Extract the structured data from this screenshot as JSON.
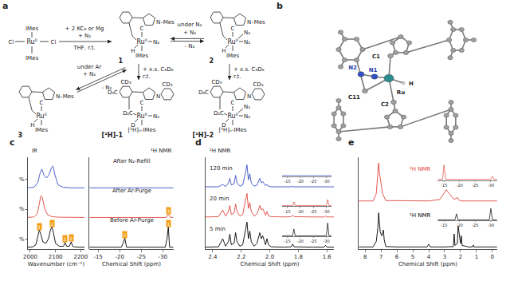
{
  "scheme": {
    "label": "a",
    "reactant": {
      "metal": "Ru",
      "ox": "II",
      "top": "IMes",
      "bottom": "IMes",
      "left": "Cl",
      "right": "Cl"
    },
    "step1": {
      "above": [
        "+ 2 KC₈ or Mg",
        "+ N₂"
      ],
      "below": "THF, r.t."
    },
    "complexes": [
      {
        "name": "1",
        "carbene": "C",
        "ring": "N–Mes",
        "metal": "Ru",
        "ox": "II",
        "ligands": [
          "N₂"
        ],
        "hydride": "H",
        "bottom": "IMes"
      },
      {
        "name": "2",
        "carbene": "C",
        "ring": "N–Mes",
        "metal": "Ru",
        "ox": "II",
        "ligands": [
          "N₂",
          "N₂"
        ],
        "hydride": "H",
        "bottom": "IMes"
      },
      {
        "name": "3",
        "carbene": "C",
        "ring": "N–Mes",
        "metal": "Ru",
        "ox": "II",
        "ligands": [],
        "hydride": "H",
        "bottom": "IMes"
      },
      {
        "name": "[²H]-1",
        "carbene": "C",
        "ring": "N",
        "metal": "Ru",
        "ox": "II",
        "ligands": [
          "N₂"
        ],
        "hydride": "D",
        "bottom": "[²H]ₙ-IMes",
        "linker": "D₂C",
        "substituents": [
          "CD₃",
          "D₃C",
          "CD₃"
        ]
      },
      {
        "name": "[²H]-2",
        "carbene": "C",
        "ring": "N",
        "metal": "Ru",
        "ox": "II",
        "ligands": [
          "N₂",
          "N₂"
        ],
        "hydride": "D",
        "bottom": "[²H]ₙ-IMes",
        "linker": "D₂C",
        "substituents": [
          "CD₃",
          "D₃C",
          "CD₃"
        ]
      }
    ],
    "eq_1_2": {
      "above": [
        "under N₂",
        "+ N₂"
      ],
      "below": "- N₂"
    },
    "eq_1_3": {
      "above": [
        "under Ar",
        "+ N₂"
      ],
      "below": "- N₂"
    },
    "deuteration": {
      "above": "+ x.s. C₆D₆",
      "below": "r.t."
    }
  },
  "structure": {
    "label": "b",
    "atoms": [
      "C1",
      "N1",
      "N2",
      "C11",
      "Ru",
      "H",
      "C2"
    ]
  },
  "chart_data": [
    {
      "type": "line",
      "panel_label": "c",
      "title": "IR",
      "x_label": "Wavenumber (cm⁻¹)",
      "xlim": [
        1990,
        2215
      ],
      "xticks": [
        2000,
        2100,
        2200
      ],
      "ylim": [
        -0.05,
        3.05
      ],
      "yticks": [
        {
          "value": 0.3,
          "label": "%"
        },
        {
          "value": 1.3,
          "label": "%"
        },
        {
          "value": 2.3,
          "label": "%"
        }
      ],
      "series": [
        {
          "name": "Before Ar-Purge",
          "color": "#000000",
          "x": [
            1990,
            2010,
            2022,
            2030,
            2036,
            2042,
            2050,
            2062,
            2072,
            2080,
            2086,
            2092,
            2100,
            2115,
            2132,
            2138,
            2144,
            2155,
            2162,
            2168,
            2176,
            2195,
            2215
          ],
          "values": [
            0.02,
            0.03,
            0.1,
            0.35,
            0.6,
            0.45,
            0.2,
            0.15,
            0.3,
            0.6,
            0.7,
            0.5,
            0.15,
            0.05,
            0.05,
            0.18,
            0.05,
            0.05,
            0.2,
            0.05,
            0.03,
            0.02,
            0.02
          ]
        },
        {
          "name": "After Ar-Purge",
          "color": "#e0443c",
          "x": [
            1990,
            2015,
            2028,
            2036,
            2042,
            2048,
            2056,
            2068,
            2085,
            2110,
            2160,
            2215
          ],
          "values": [
            1.02,
            1.04,
            1.15,
            1.5,
            1.75,
            1.7,
            1.35,
            1.12,
            1.05,
            1.03,
            1.02,
            1.02
          ]
        },
        {
          "name": "After N₂-Refill",
          "color": "#3a4fc4",
          "x": [
            1990,
            2015,
            2030,
            2040,
            2046,
            2054,
            2064,
            2074,
            2084,
            2090,
            2098,
            2110,
            2130,
            2160,
            2215
          ],
          "values": [
            2.02,
            2.04,
            2.2,
            2.55,
            2.65,
            2.45,
            2.35,
            2.45,
            2.7,
            2.75,
            2.45,
            2.12,
            2.04,
            2.02,
            2.02
          ]
        }
      ],
      "markers": [
        {
          "x": 2036,
          "y": 0.72,
          "label": "1"
        },
        {
          "x": 2086,
          "y": 0.82,
          "label": "2"
        },
        {
          "x": 2138,
          "y": 0.3,
          "label": "2"
        },
        {
          "x": 2162,
          "y": 0.32,
          "label": "2"
        }
      ]
    },
    {
      "type": "line",
      "title": "¹H NMR",
      "x_label": "Chemical Shift (ppm)",
      "xlim": [
        -13,
        -32.5
      ],
      "xticks": [
        -15,
        -20,
        -25,
        -30
      ],
      "ylim": [
        -0.05,
        3.05
      ],
      "tick_labels": "x",
      "series": [
        {
          "color": "#000000",
          "x": [
            -13,
            -20.4,
            -20.8,
            -21.2,
            -21.6,
            -30.6,
            -31.0,
            -31.3,
            -31.6,
            -32.5
          ],
          "values": [
            0.02,
            0.02,
            0.15,
            0.32,
            0.02,
            0.02,
            0.3,
            0.7,
            0.02,
            0.02
          ]
        },
        {
          "color": "#e0443c",
          "x": [
            -13,
            -30.8,
            -31.3,
            -31.8,
            -32.5
          ],
          "values": [
            1.02,
            1.02,
            1.12,
            1.02,
            1.02
          ]
        },
        {
          "color": "#3a4fc4",
          "x": [
            -13,
            -32.5
          ],
          "values": [
            2.02,
            2.02
          ]
        }
      ],
      "markers": [
        {
          "x": -21.2,
          "y": 0.44,
          "label": "2"
        },
        {
          "x": -31.3,
          "y": 0.82,
          "label": "1"
        },
        {
          "x": -31.3,
          "y": 1.24,
          "label": "3"
        }
      ]
    },
    {
      "type": "line",
      "panel_label": "d",
      "title": "¹H NMR",
      "x_label": "Chemical Shift (ppm)",
      "xlim": [
        2.45,
        1.55
      ],
      "xticks": [
        2.4,
        2.2,
        {
          "value": 2,
          "label": "2.0"
        },
        1.8,
        1.6
      ],
      "ylim": [
        -0.05,
        3.0
      ],
      "tick_labels": "x",
      "series": [
        {
          "name": "5 min",
          "color": "#000000",
          "x": [
            2.45,
            2.36,
            2.33,
            2.31,
            2.29,
            2.28,
            2.27,
            2.25,
            2.24,
            2.23,
            2.21,
            2.19,
            2.17,
            2.16,
            2.15,
            2.14,
            2.13,
            2.11,
            2.09,
            2.07,
            2.06,
            2.05,
            2.03,
            2.02,
            2.01,
            1.99,
            1.9,
            1.85,
            1.84,
            1.83,
            1.7,
            1.62,
            1.61,
            1.6,
            1.55
          ],
          "values": [
            0.02,
            0.03,
            0.3,
            0.05,
            0.2,
            0.45,
            0.1,
            0.15,
            0.5,
            0.2,
            0.05,
            0.1,
            0.6,
            0.85,
            0.3,
            0.55,
            0.2,
            0.05,
            0.15,
            0.5,
            0.3,
            0.4,
            0.1,
            0.3,
            0.1,
            0.03,
            0.02,
            0.03,
            0.12,
            0.03,
            0.02,
            0.02,
            0.08,
            0.02,
            0.02
          ],
          "inset": {
            "xlim": [
              -13,
              -32
            ],
            "xticks": [
              -15,
              -20,
              -25,
              -30
            ],
            "ylim": [
              0,
              1
            ],
            "x": [
              -13,
              -17,
              -17.5,
              -18,
              -30,
              -30.5,
              -31,
              -32
            ],
            "values": [
              0.05,
              0.05,
              0.5,
              0.05,
              0.05,
              0.9,
              0.05,
              0.05
            ]
          }
        },
        {
          "name": "20 min",
          "color": "#e0443c",
          "x": [
            2.45,
            2.36,
            2.33,
            2.31,
            2.29,
            2.28,
            2.27,
            2.25,
            2.24,
            2.23,
            2.21,
            2.19,
            2.17,
            2.16,
            2.15,
            2.14,
            2.13,
            2.11,
            2.09,
            2.07,
            2.06,
            2.05,
            2.03,
            2.02,
            2.01,
            1.99,
            1.9,
            1.85,
            1.84,
            1.83,
            1.7,
            1.62,
            1.61,
            1.6,
            1.55
          ],
          "values": [
            1.02,
            1.03,
            1.25,
            1.05,
            1.2,
            1.4,
            1.1,
            1.15,
            1.45,
            1.2,
            1.05,
            1.1,
            1.6,
            1.8,
            1.3,
            1.5,
            1.2,
            1.05,
            1.12,
            1.4,
            1.25,
            1.3,
            1.08,
            1.2,
            1.06,
            1.03,
            1.02,
            1.03,
            1.08,
            1.03,
            1.02,
            1.02,
            1.05,
            1.02,
            1.02
          ],
          "inset": {
            "xlim": [
              -13,
              -32
            ],
            "xticks": [
              -15,
              -20,
              -25,
              -30
            ],
            "ylim": [
              0,
              1
            ],
            "x": [
              -13,
              -17,
              -17.5,
              -18,
              -30,
              -30.5,
              -31,
              -32
            ],
            "values": [
              0.05,
              0.05,
              0.3,
              0.05,
              0.05,
              0.45,
              0.05,
              0.05
            ]
          }
        },
        {
          "name": "120 min",
          "color": "#3a4fc4",
          "x": [
            2.45,
            2.36,
            2.33,
            2.31,
            2.29,
            2.28,
            2.27,
            2.25,
            2.24,
            2.23,
            2.21,
            2.19,
            2.17,
            2.16,
            2.15,
            2.14,
            2.13,
            2.11,
            2.09,
            2.07,
            2.06,
            2.05,
            2.03,
            2.02,
            2.01,
            1.99,
            1.9,
            1.85,
            1.84,
            1.83,
            1.7,
            1.62,
            1.61,
            1.6,
            1.55
          ],
          "values": [
            2.02,
            2.02,
            2.1,
            2.03,
            2.15,
            2.3,
            2.08,
            2.12,
            2.4,
            2.15,
            2.04,
            2.08,
            2.5,
            2.75,
            2.25,
            2.45,
            2.15,
            2.04,
            2.08,
            2.3,
            2.15,
            2.2,
            2.05,
            2.1,
            2.04,
            2.02,
            2.02,
            2.02,
            2.04,
            2.02,
            2.02,
            2.02,
            2.03,
            2.02,
            2.02
          ],
          "inset": {
            "xlim": [
              -13,
              -32
            ],
            "xticks": [
              -15,
              -20,
              -25,
              -30
            ],
            "ylim": [
              0,
              1
            ],
            "x": [
              -13,
              -32
            ],
            "values": [
              0.05,
              0.05
            ]
          }
        }
      ]
    },
    {
      "type": "line",
      "panel_label": "e",
      "x_label": "Chemical Shift (ppm)",
      "xlim": [
        8.4,
        -0.3
      ],
      "xticks": [
        8,
        7,
        6,
        5,
        4,
        3,
        2,
        1,
        0
      ],
      "ylim": [
        -0.05,
        2.35
      ],
      "tick_labels": "x",
      "series": [
        {
          "name": "¹H NMR",
          "color": "#000000",
          "x": [
            8.4,
            7.5,
            7.3,
            7.2,
            7.15,
            7.1,
            7.05,
            6.95,
            6.85,
            6.8,
            6.7,
            6.0,
            4.1,
            4.0,
            3.9,
            3.0,
            2.45,
            2.4,
            2.35,
            2.2,
            2.15,
            2.1,
            2.0,
            1.95,
            1.9,
            1.5,
            1.25,
            1.2,
            1.15,
            0.5,
            -0.3
          ],
          "values": [
            0.01,
            0.01,
            0.15,
            0.5,
            0.9,
            0.7,
            0.4,
            0.3,
            0.45,
            0.2,
            0.02,
            0.01,
            0.01,
            0.08,
            0.01,
            0.01,
            0.02,
            0.35,
            0.05,
            0.1,
            0.55,
            0.4,
            0.1,
            0.3,
            0.05,
            0.01,
            0.01,
            0.06,
            0.01,
            0.01,
            0.01
          ],
          "inset": {
            "xlim": [
              -13,
              -32
            ],
            "xticks": [
              -15,
              -20,
              -25,
              -30
            ],
            "ylim": [
              0,
              1
            ],
            "x": [
              -13,
              -18.5,
              -19,
              -19.5,
              -29.5,
              -30,
              -30.5,
              -32
            ],
            "values": [
              0.05,
              0.05,
              0.5,
              0.05,
              0.05,
              0.9,
              0.05,
              0.05
            ]
          }
        },
        {
          "name": "²H NMR",
          "color": "#e0443c",
          "x": [
            8.4,
            7.5,
            7.3,
            7.2,
            7.15,
            7.1,
            7.0,
            6.9,
            6.7,
            4.0,
            3.3,
            3.0,
            2.9,
            2.7,
            2.4,
            2.2,
            2.1,
            1.9,
            0.5,
            -0.3
          ],
          "values": [
            1.21,
            1.21,
            1.4,
            1.9,
            2.2,
            1.95,
            1.7,
            1.4,
            1.22,
            1.21,
            1.25,
            1.45,
            1.5,
            1.4,
            1.25,
            1.3,
            1.23,
            1.21,
            1.21,
            1.21
          ],
          "inset": {
            "xlim": [
              -13,
              -32
            ],
            "xticks": [
              -15,
              -20,
              -25,
              -30
            ],
            "ylim": [
              0,
              1
            ],
            "x": [
              -13,
              -14.5,
              -15,
              -15.5,
              -30,
              -30.5,
              -31,
              -32
            ],
            "values": [
              0.05,
              0.05,
              0.8,
              0.05,
              0.05,
              0.2,
              0.05,
              0.05
            ]
          }
        }
      ]
    }
  ]
}
